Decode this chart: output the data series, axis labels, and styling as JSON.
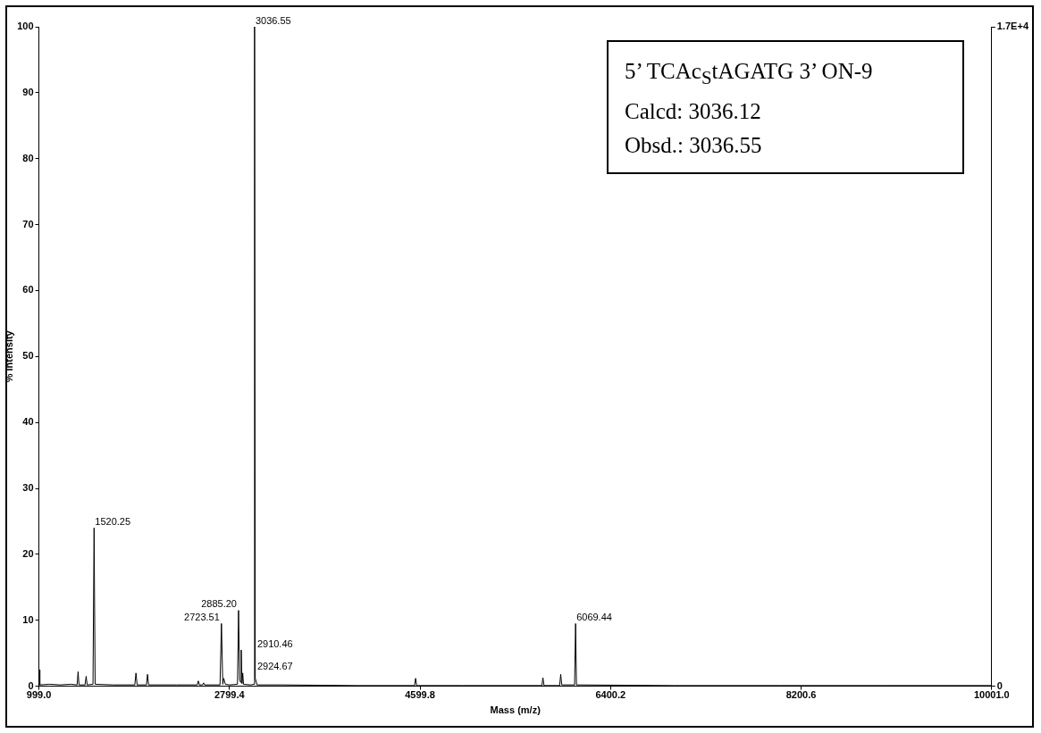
{
  "chart_data": {
    "type": "line",
    "xlabel": "Mass (m/z)",
    "ylabel": "% Intensity",
    "x": [
      999,
      1003,
      1006,
      1010,
      1100,
      1200,
      1300,
      1360,
      1369,
      1378,
      1435,
      1445,
      1455,
      1510,
      1520.25,
      1530,
      1700,
      1905,
      1916,
      1927,
      2015,
      2025,
      2035,
      2300,
      2495,
      2505,
      2515,
      2545,
      2555,
      2565,
      2710,
      2723.51,
      2736,
      2745,
      2750,
      2760,
      2800,
      2875,
      2885.2,
      2895,
      2905,
      2910.46,
      2918,
      2924.67,
      2932,
      3000,
      3030,
      3036.55,
      3043,
      3060,
      3300,
      4000,
      4548,
      4558,
      4568,
      5000,
      5751,
      5761,
      5771,
      5919,
      5929,
      5939,
      6060,
      6069.44,
      6078,
      7000,
      8000,
      9000,
      10001
    ],
    "series": [
      {
        "color": "#000000",
        "values": [
          0.3,
          2.5,
          0.3,
          0.2,
          0.3,
          0.2,
          0.3,
          0.2,
          2.2,
          0.2,
          0.2,
          1.5,
          0.2,
          0.3,
          24,
          0.3,
          0.2,
          0.2,
          2,
          0.2,
          0.2,
          1.8,
          0.2,
          0.2,
          0.2,
          0.8,
          0.2,
          0.2,
          0.5,
          0.2,
          0.2,
          9.5,
          0.3,
          1.2,
          1.2,
          0.3,
          0.2,
          0.3,
          11.5,
          1,
          0.6,
          5.5,
          0.4,
          2,
          0.3,
          0.2,
          0.3,
          100,
          1.2,
          0.2,
          0.2,
          0.1,
          0.1,
          1.2,
          0.1,
          0.1,
          0.1,
          1.3,
          0.1,
          0.1,
          1.8,
          0.2,
          0.2,
          9.5,
          0.2,
          0.1,
          0.1,
          0.1,
          0.1
        ]
      }
    ],
    "xlim": [
      999,
      10001
    ],
    "xticks": [
      {
        "value": 999,
        "label": "999.0"
      },
      {
        "value": 2799.4,
        "label": "2799.4"
      },
      {
        "value": 4599.8,
        "label": "4599.8"
      },
      {
        "value": 6400.2,
        "label": "6400.2"
      },
      {
        "value": 8200.6,
        "label": "8200.6"
      },
      {
        "value": 10001,
        "label": "10001.0"
      }
    ],
    "ylim": [
      0,
      100
    ],
    "yticks": [
      0,
      10,
      20,
      30,
      40,
      50,
      60,
      70,
      80,
      90,
      100
    ],
    "y2lim": [
      0,
      17000
    ],
    "y2ticks": [
      0,
      {
        "value": 17000,
        "label": "1.7E+4"
      }
    ],
    "grid": false,
    "legend": false,
    "annotations": [
      {
        "text": "1520.25",
        "x": 1520.25,
        "y": 24
      },
      {
        "text": "2723.51",
        "x": 2723.51,
        "y": 9.5
      },
      {
        "text": "2885.20",
        "x": 2885.2,
        "y": 11.5
      },
      {
        "text": "2910.46",
        "x": 2910.46,
        "y": 5.5
      },
      {
        "text": "2924.67",
        "x": 2924.67,
        "y": 2
      },
      {
        "text": "3036.55",
        "x": 3036.55,
        "y": 100
      },
      {
        "text": "6069.44",
        "x": 6069.44,
        "y": 9.5
      },
      "5’ TCAc$_{S}$tAGATG 3’ ON-9",
      "Calcd: 3036.12",
      "Obsd.: 3036.55"
    ]
  }
}
